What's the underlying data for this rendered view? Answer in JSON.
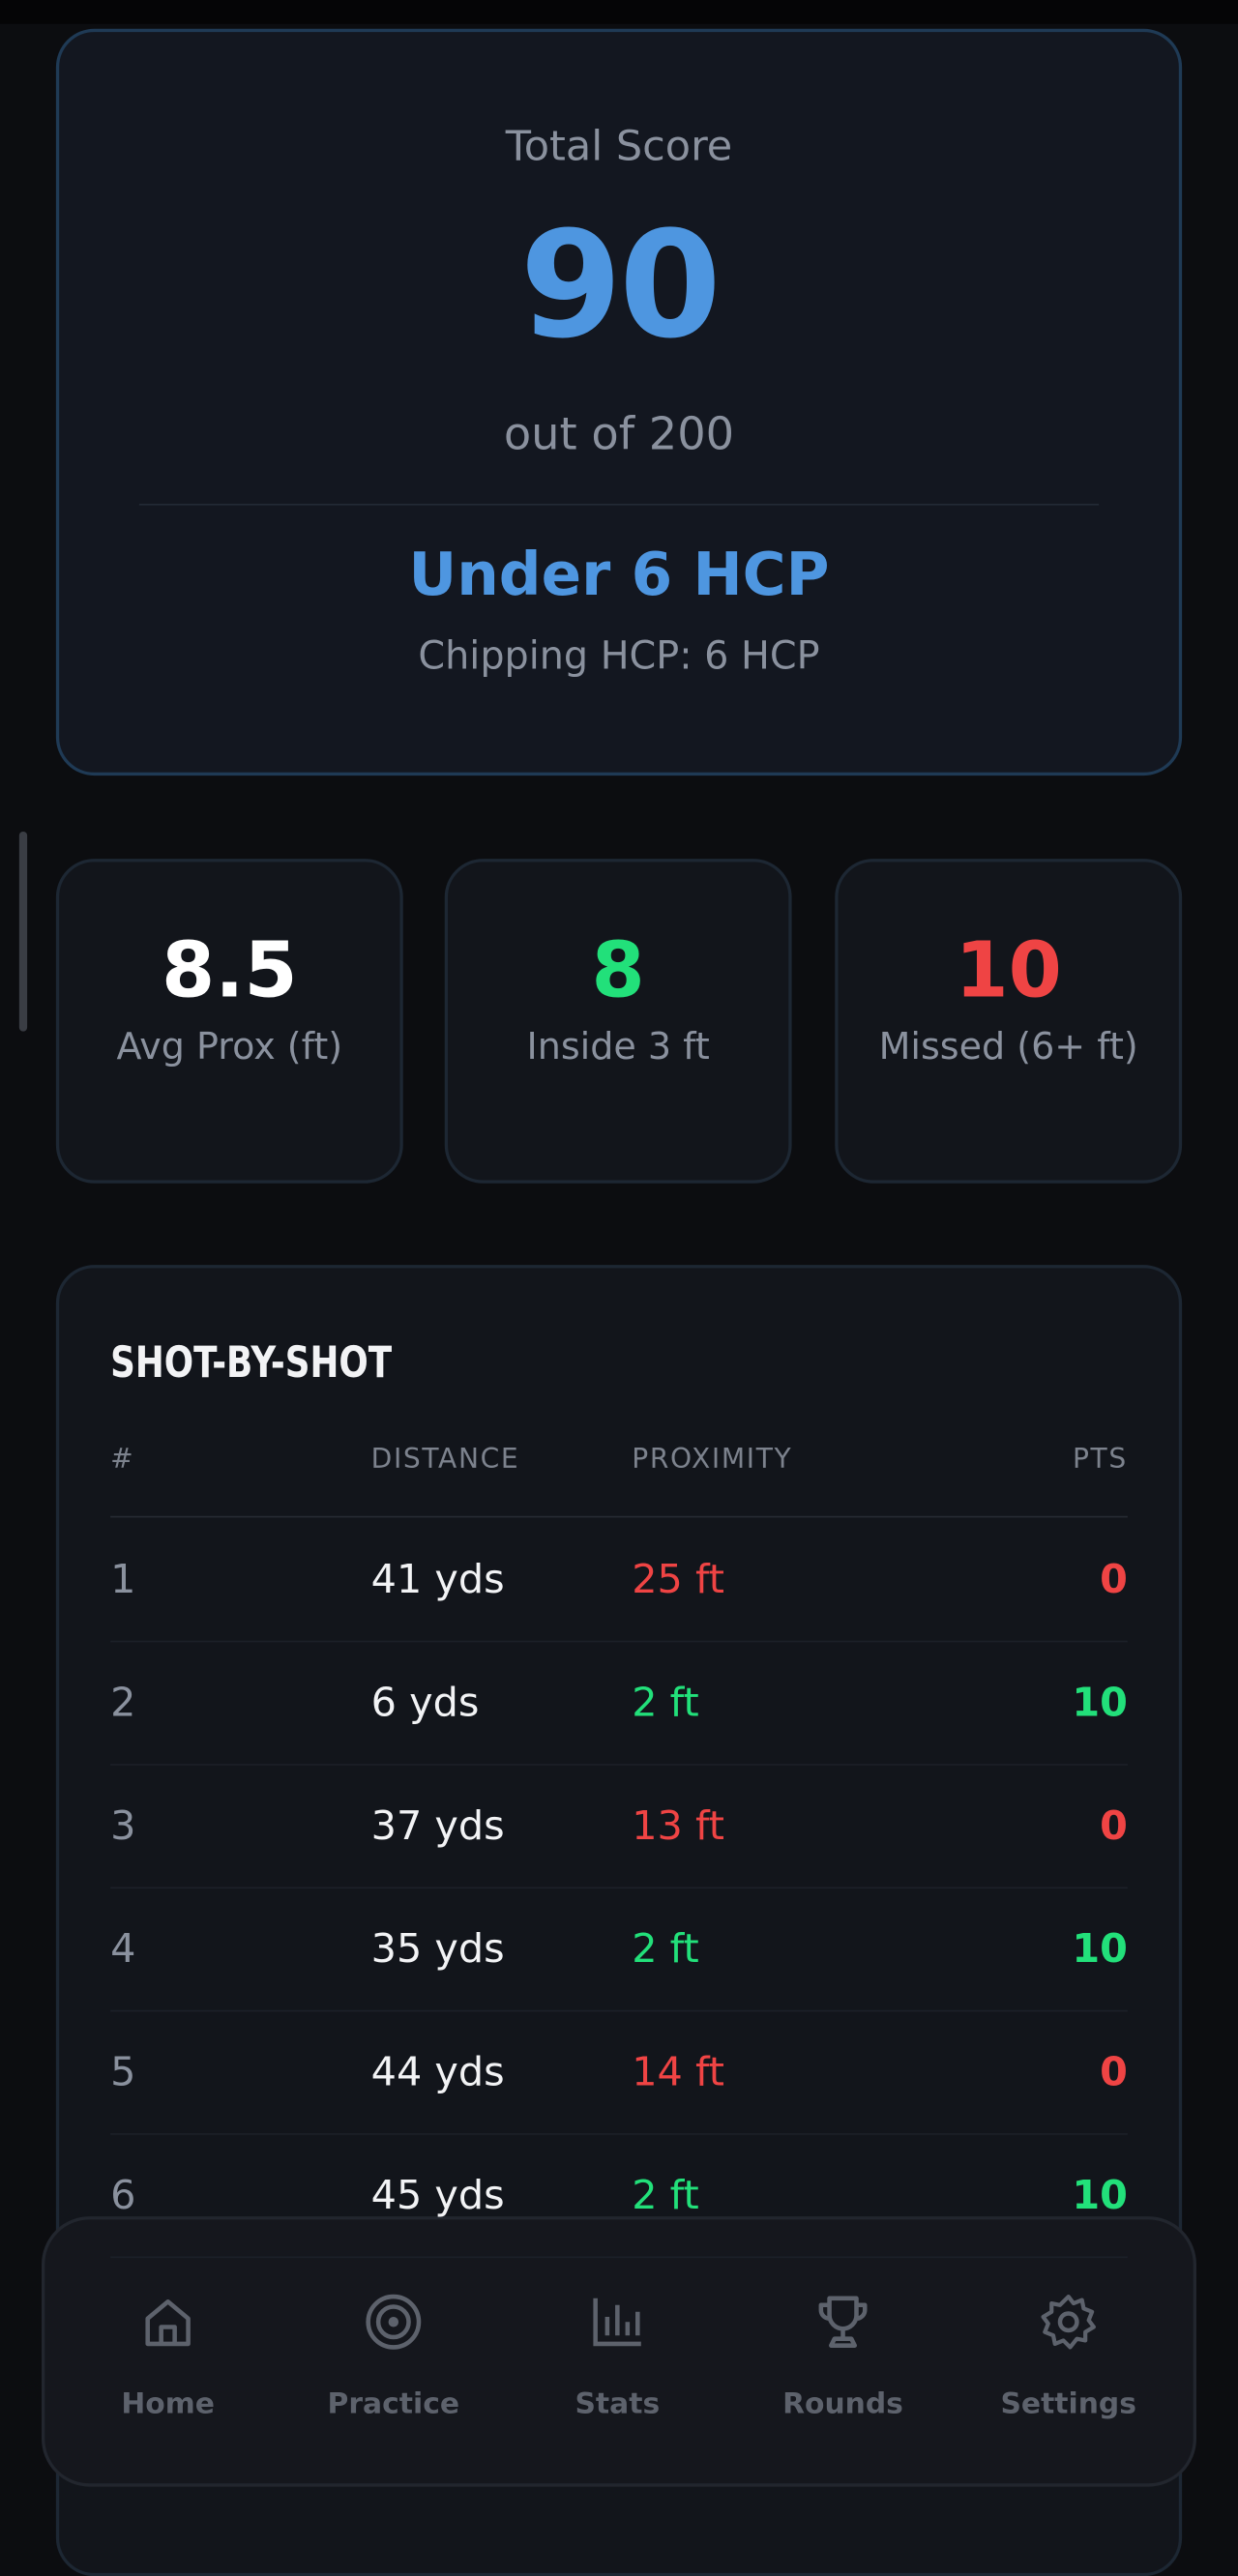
{
  "score_card": {
    "label": "Total Score",
    "score": "90",
    "out_of": "out of 200",
    "hcp": "Under 6 HCP",
    "sub": "Chipping HCP: 6 HCP"
  },
  "stats": [
    {
      "value": "8.5",
      "label": "Avg Prox (ft)"
    },
    {
      "value": "8",
      "label": "Inside 3 ft"
    },
    {
      "value": "10",
      "label": "Missed (6+ ft)"
    }
  ],
  "table": {
    "title": "SHOT-BY-SHOT",
    "headers": [
      "#",
      "DISTANCE",
      "PROXIMITY",
      "PTS"
    ],
    "rows": [
      [
        "1",
        "41 yds",
        "25 ft",
        "0"
      ],
      [
        "2",
        "6 yds",
        "2 ft",
        "10"
      ],
      [
        "3",
        "37 yds",
        "13 ft",
        "0"
      ],
      [
        "4",
        "35 yds",
        "2 ft",
        "10"
      ],
      [
        "5",
        "44 yds",
        "14 ft",
        "0"
      ],
      [
        "6",
        "45 yds",
        "2 ft",
        "10"
      ]
    ]
  },
  "nav": [
    "Home",
    "Practice",
    "Stats",
    "Rounds",
    "Settings"
  ]
}
